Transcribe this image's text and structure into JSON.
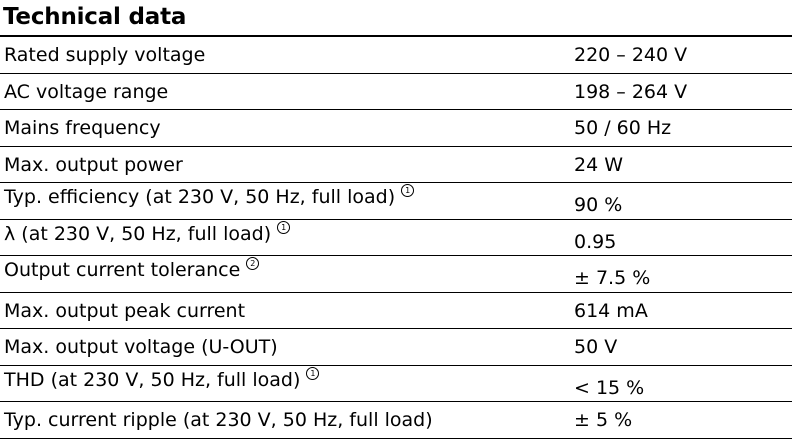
{
  "title": "Technical data",
  "rows": [
    {
      "label": "Rated supply voltage",
      "value": "220 – 240 V",
      "note": ""
    },
    {
      "label": "AC voltage range",
      "value": "198 – 264 V",
      "note": ""
    },
    {
      "label": "Mains frequency",
      "value": "50 / 60 Hz",
      "note": ""
    },
    {
      "label": "Max. output power",
      "value": "24 W",
      "note": ""
    },
    {
      "label": "Typ. efficiency (at 230 V, 50 Hz, full load)",
      "value": "90 %",
      "note": "1"
    },
    {
      "label": "λ (at 230 V, 50 Hz, full load)",
      "value": "0.95",
      "note": "1"
    },
    {
      "label": "Output current tolerance",
      "value": "± 7.5 %",
      "note": "2"
    },
    {
      "label": "Max. output peak current",
      "value": "614 mA",
      "note": ""
    },
    {
      "label": "Max. output voltage (U-OUT)",
      "value": "50 V",
      "note": ""
    },
    {
      "label": "THD (at 230 V, 50 Hz, full load)",
      "value": "< 15 %",
      "note": "1"
    },
    {
      "label": "Typ. current ripple (at 230 V, 50 Hz, full load)",
      "value": "± 5 %",
      "note": ""
    }
  ]
}
